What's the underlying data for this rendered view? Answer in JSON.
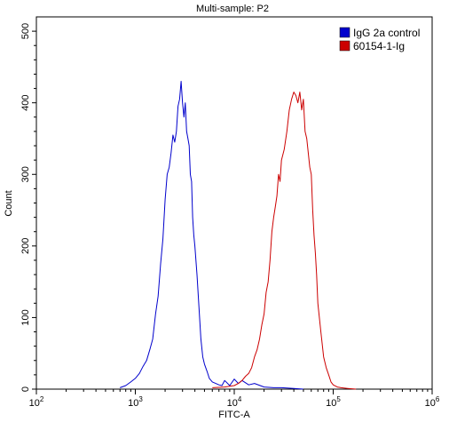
{
  "chart_data": {
    "type": "line",
    "title": "Multi-sample: P2",
    "xlabel": "FITC-A",
    "ylabel": "Count",
    "x_scale": "log",
    "xlim": [
      100,
      1000000
    ],
    "ylim": [
      0,
      520
    ],
    "x_ticks": [
      {
        "value": 100,
        "mantissa": "10",
        "exponent": "2"
      },
      {
        "value": 1000,
        "mantissa": "10",
        "exponent": "3"
      },
      {
        "value": 10000,
        "mantissa": "10",
        "exponent": "4"
      },
      {
        "value": 100000,
        "mantissa": "10",
        "exponent": "5"
      },
      {
        "value": 1000000,
        "mantissa": "10",
        "exponent": "6"
      }
    ],
    "y_ticks": [
      "0",
      "100",
      "200",
      "300",
      "400",
      "500"
    ],
    "grid": false,
    "legend_position": "top-right",
    "series": [
      {
        "name": "IgG 2a control",
        "color": "#0000cc",
        "x": [
          700,
          800,
          900,
          1000,
          1100,
          1200,
          1300,
          1400,
          1500,
          1600,
          1700,
          1800,
          1900,
          2000,
          2100,
          2200,
          2300,
          2400,
          2500,
          2600,
          2700,
          2800,
          2900,
          3000,
          3100,
          3200,
          3300,
          3400,
          3500,
          3600,
          3700,
          3800,
          3900,
          4000,
          4200,
          4400,
          4600,
          4800,
          5000,
          5300,
          5600,
          6000,
          6500,
          7000,
          7500,
          8000,
          9000,
          10000,
          11000,
          12000,
          14000,
          16000,
          20000,
          25000,
          30000,
          40000,
          50000
        ],
        "values": [
          2,
          5,
          10,
          15,
          22,
          32,
          40,
          55,
          70,
          105,
          130,
          175,
          210,
          265,
          300,
          310,
          330,
          355,
          345,
          360,
          395,
          405,
          430,
          400,
          380,
          400,
          360,
          350,
          340,
          300,
          290,
          240,
          215,
          200,
          160,
          115,
          70,
          45,
          35,
          25,
          15,
          10,
          8,
          6,
          5,
          12,
          5,
          14,
          8,
          12,
          6,
          8,
          3,
          2,
          2,
          1,
          0
        ]
      },
      {
        "name": "60154-1-Ig",
        "color": "#cc0000",
        "x": [
          6000,
          8000,
          10000,
          11000,
          12000,
          13000,
          14000,
          15000,
          16000,
          17000,
          18000,
          19000,
          20000,
          21000,
          22000,
          23000,
          24000,
          25000,
          26000,
          27000,
          28000,
          29000,
          30000,
          32000,
          34000,
          36000,
          38000,
          40000,
          42000,
          44000,
          46000,
          48000,
          50000,
          52000,
          54000,
          56000,
          58000,
          60000,
          62000,
          64000,
          66000,
          68000,
          70000,
          75000,
          80000,
          85000,
          90000,
          95000,
          100000,
          110000,
          120000,
          140000,
          170000
        ],
        "values": [
          2,
          3,
          5,
          8,
          12,
          18,
          22,
          30,
          45,
          55,
          70,
          90,
          105,
          135,
          150,
          180,
          220,
          240,
          255,
          270,
          300,
          290,
          320,
          335,
          360,
          390,
          405,
          415,
          410,
          400,
          415,
          390,
          405,
          360,
          350,
          330,
          310,
          300,
          250,
          215,
          190,
          160,
          120,
          80,
          45,
          30,
          20,
          10,
          6,
          3,
          2,
          1,
          0
        ]
      }
    ]
  }
}
